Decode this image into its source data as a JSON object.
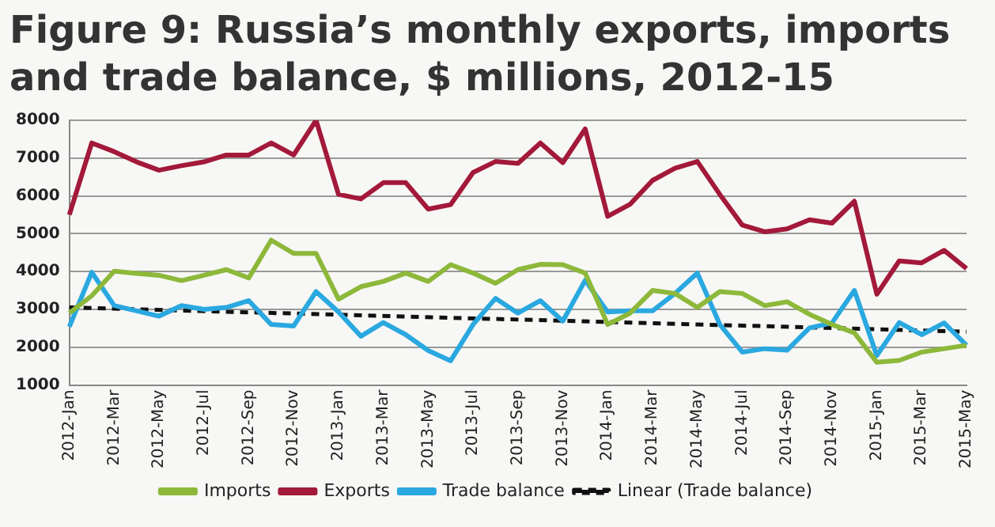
{
  "chart_data": {
    "type": "line",
    "title": "Figure 9: Russia’s monthly exports, imports and trade balance, $ millions, 2012-15",
    "categories": [
      "2012-Jan",
      null,
      "2012-Mar",
      null,
      "2012-May",
      null,
      "2012-Jul",
      null,
      "2012-Sep",
      null,
      "2012-Nov",
      null,
      "2013-Jan",
      null,
      "2013-Mar",
      null,
      "2013-May",
      null,
      "2013-Jul",
      null,
      "2013-Sep",
      null,
      "2013-Nov",
      null,
      "2014-Jan",
      null,
      "2014-Mar",
      null,
      "2014-May",
      null,
      "2014-Jul",
      null,
      "2014-Sep",
      null,
      "2014-Nov",
      null,
      "2015-Jan",
      null,
      "2015-Mar",
      null,
      "2015-May"
    ],
    "series": [
      {
        "name": "Imports",
        "color": "#8db83a",
        "values": [
          2900,
          3360,
          4010,
          3950,
          3900,
          3760,
          3900,
          4050,
          3830,
          4830,
          4480,
          4480,
          3270,
          3600,
          3740,
          3960,
          3740,
          4180,
          3960,
          3690,
          4050,
          4190,
          4180,
          3960,
          2600,
          2900,
          3500,
          3420,
          3050,
          3470,
          3420,
          3100,
          3200,
          2870,
          2600,
          2380,
          1600,
          1650,
          1870,
          1960,
          2050
        ]
      },
      {
        "name": "Exports",
        "color": "#a3193a",
        "values": [
          5500,
          7400,
          7170,
          6900,
          6680,
          6800,
          6900,
          7080,
          7080,
          7400,
          7080,
          8000,
          6040,
          5920,
          6350,
          6350,
          5650,
          5770,
          6620,
          6910,
          6860,
          7400,
          6880,
          7770,
          5460,
          5780,
          6410,
          6730,
          6910,
          6040,
          5230,
          5050,
          5130,
          5370,
          5280,
          5860,
          3400,
          4280,
          4230,
          4560,
          4080
        ]
      },
      {
        "name": "Trade balance",
        "color": "#2aa8e0",
        "values": [
          2540,
          3980,
          3100,
          2960,
          2820,
          3100,
          3000,
          3050,
          3230,
          2600,
          2560,
          3470,
          2930,
          2290,
          2650,
          2330,
          1910,
          1640,
          2600,
          3290,
          2900,
          3230,
          2690,
          3770,
          2930,
          2960,
          2960,
          3420,
          3960,
          2600,
          1870,
          1960,
          1920,
          2510,
          2640,
          3500,
          1780,
          2650,
          2330,
          2640,
          2050
        ]
      },
      {
        "name": "Linear (Trade balance)",
        "color": "#111111",
        "line_style": "dashed",
        "x": [
          "2012-Jan",
          "2015-May"
        ],
        "values": [
          3050,
          2410
        ]
      }
    ],
    "ylim": [
      1000,
      8000
    ],
    "yticks": [
      1000,
      2000,
      3000,
      4000,
      5000,
      6000,
      7000,
      8000
    ],
    "grid": "y",
    "legend": "bottom",
    "marker": "none"
  }
}
